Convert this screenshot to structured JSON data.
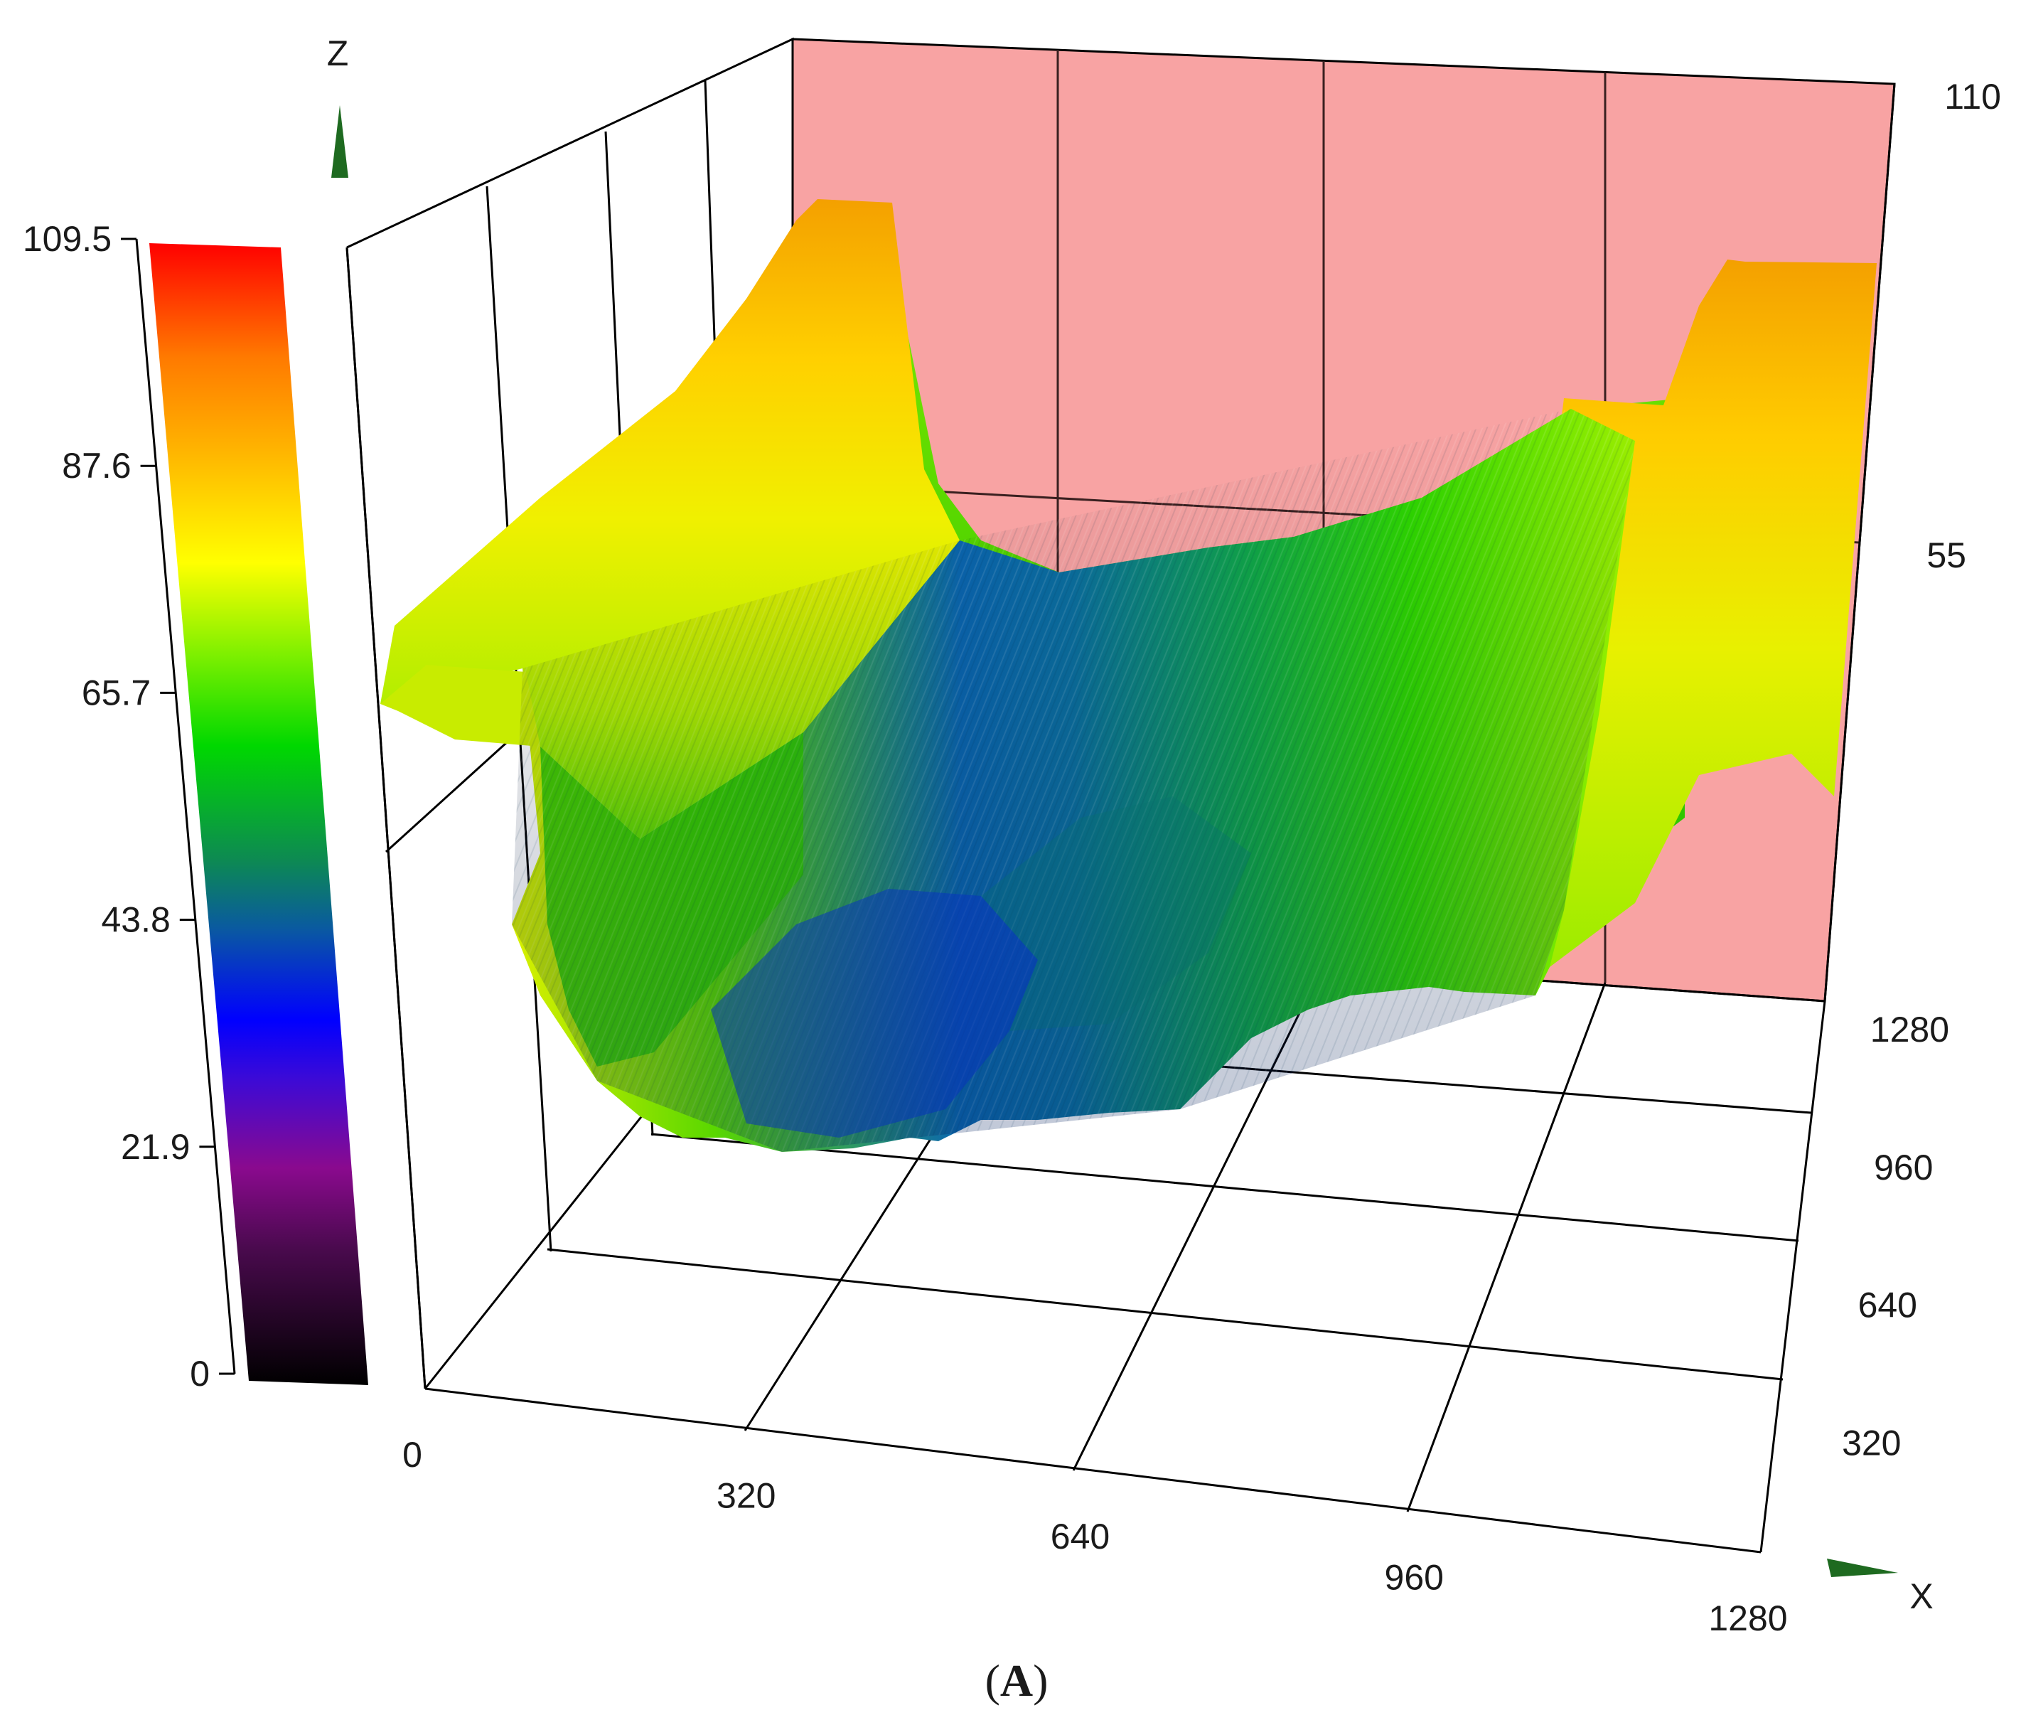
{
  "chart_data": {
    "type": "surface3d",
    "panel_label_open": "(",
    "panel_label_letter": "A",
    "panel_label_close": ")",
    "axes": {
      "x": {
        "label": "X",
        "range": [
          0,
          1280
        ],
        "ticks": [
          0,
          320,
          640,
          960,
          1280
        ]
      },
      "y": {
        "label": "",
        "range": [
          0,
          1280
        ],
        "ticks": [
          320,
          640,
          960,
          1280
        ]
      },
      "z": {
        "label": "Z",
        "range": [
          0,
          110
        ],
        "ticks": [
          55,
          110
        ]
      }
    },
    "colorbar": {
      "range": [
        0,
        109.5
      ],
      "ticks": [
        "0",
        "21.9",
        "43.8",
        "65.7",
        "87.6",
        "109.5"
      ],
      "colors": [
        "#000000",
        "#6a0a6e",
        "#0000ff",
        "#0d8a52",
        "#00e600",
        "#ffff00",
        "#ff9900",
        "#ff0000"
      ]
    },
    "back_wall_color": "#f8a3a3",
    "surface": {
      "description_profile_x": [
        0,
        160,
        320,
        480,
        640,
        800,
        960,
        1120,
        1280
      ],
      "left_ridge_z": 90,
      "valley_min_z": 22,
      "right_ridge_z": 92,
      "rear_edge_z": [
        70,
        86,
        95,
        70,
        58,
        60,
        66,
        74,
        95
      ],
      "front_edge_z": [
        42,
        34,
        24,
        22,
        28,
        38,
        48,
        58,
        70
      ]
    }
  }
}
